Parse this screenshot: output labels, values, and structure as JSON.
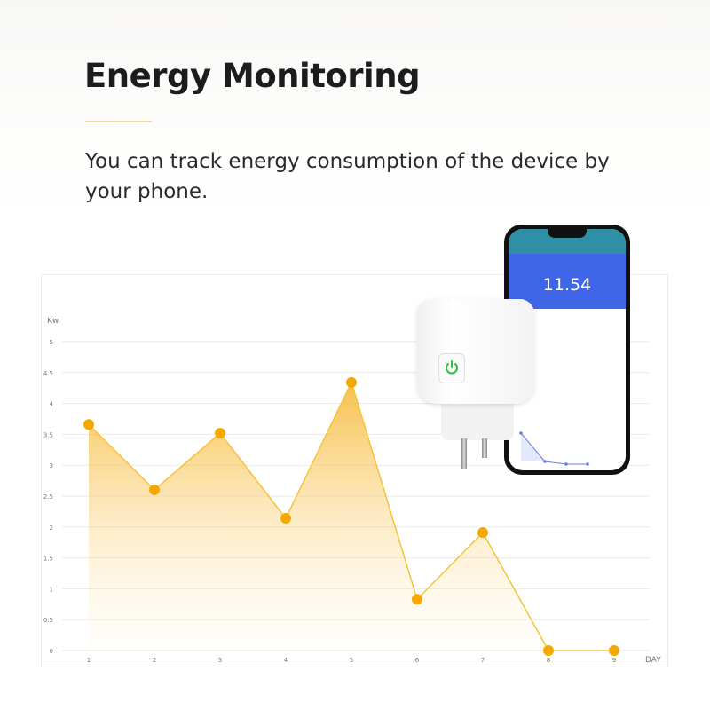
{
  "header": {
    "title": "Energy Monitoring",
    "subtitle": "You can track energy consumption of the device by your phone."
  },
  "phone": {
    "reading": "11.54",
    "accent": "#3f66e6"
  },
  "chart_data": {
    "type": "area",
    "title": "",
    "ylabel": "Kw",
    "xlabel": "DAY",
    "categories": [
      "1",
      "2",
      "3",
      "4",
      "5",
      "6",
      "7",
      "8",
      "9"
    ],
    "values": [
      3.66,
      2.6,
      3.52,
      2.14,
      4.34,
      0.83,
      1.91,
      0,
      0
    ],
    "ylim": [
      0,
      5
    ],
    "yticks": [
      "0",
      "0.5",
      "1",
      "1.5",
      "2",
      "2.5",
      "3",
      "3.5",
      "4",
      "4.5",
      "5"
    ],
    "grid": true,
    "line_color": "#f5c33b",
    "point_color": "#f5a800"
  }
}
